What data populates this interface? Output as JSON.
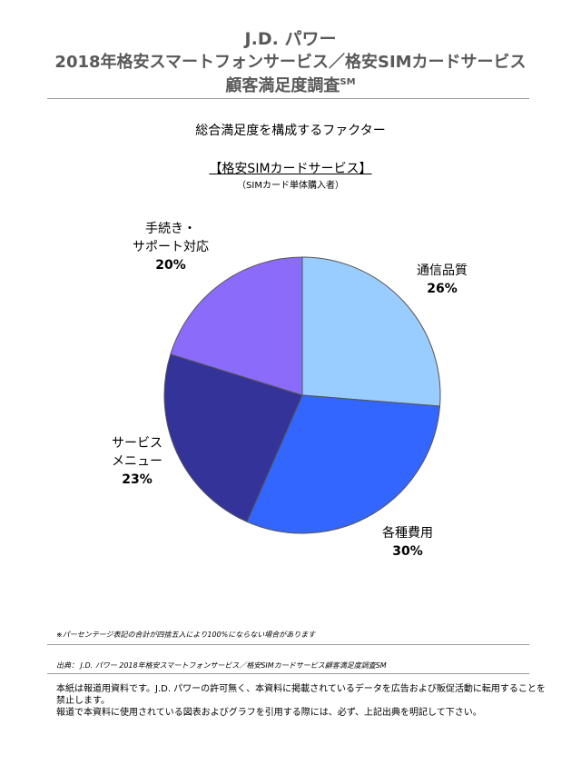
{
  "header": {
    "line1": "J.D. パワー",
    "line2": "2018年格安スマートフォンサービス／格安SIMカードサービス",
    "line3": "顧客満足度調査",
    "line3_mark": "SM"
  },
  "subtitle": "総合満足度を構成するファクター",
  "segment": {
    "title": "【格安SIMカードサービス】",
    "note": "（SIMカード単体購入者）"
  },
  "chart_data": {
    "type": "pie",
    "title": "総合満足度を構成するファクター",
    "slices": [
      {
        "label": [
          "通信品質"
        ],
        "value": 26,
        "display": "26%",
        "color": "#99ccff"
      },
      {
        "label": [
          "各種費用"
        ],
        "value": 30,
        "display": "30%",
        "color": "#3366ff"
      },
      {
        "label": [
          "サービス",
          "メニュー"
        ],
        "value": 23,
        "display": "23%",
        "color": "#333399"
      },
      {
        "label": [
          "手続き・",
          "サポート対応"
        ],
        "value": 20,
        "display": "20%",
        "color": "#8b6cfa"
      }
    ]
  },
  "footer": {
    "note": "※パーセンテージ表記の合計が四捨五入により100%にならない場合があります",
    "source": "出典： J.D. パワー 2018年格安スマートフォンサービス／格安SIMカードサービス顧客満足度調査SM",
    "disclaimer1": "本紙は報道用資料です。J.D. パワーの許可無く、本資料に掲載されているデータを広告および販促活動に転用することを禁止します。",
    "disclaimer2": "報道で本資料に使用されている図表およびグラフを引用する際には、必ず、上記出典を明記して下さい。"
  }
}
